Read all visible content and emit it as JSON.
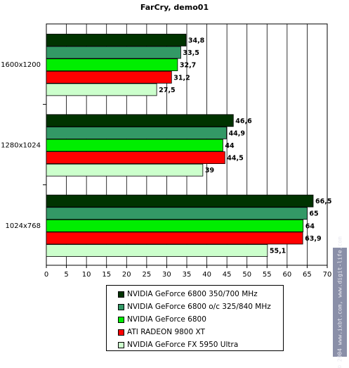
{
  "chart_data": {
    "type": "bar",
    "orientation": "horizontal",
    "title": "FarCry, demo01",
    "categories": [
      "1600x1200",
      "1280x1024",
      "1024x768"
    ],
    "series": [
      {
        "name": "NVIDIA GeForce 6800 350/700 MHz",
        "color": "#003300",
        "values": [
          34.8,
          46.6,
          66.5
        ],
        "labels": [
          "34,8",
          "46,6",
          "66,5"
        ]
      },
      {
        "name": "NVIDIA GeForce 6800 o/c 325/840 MHz",
        "color": "#339966",
        "values": [
          33.5,
          44.9,
          65
        ],
        "labels": [
          "33,5",
          "44,9",
          "65"
        ]
      },
      {
        "name": "NVIDIA GeForce 6800",
        "color": "#00ee00",
        "values": [
          32.7,
          44,
          64
        ],
        "labels": [
          "32,7",
          "44",
          "64"
        ]
      },
      {
        "name": "ATI RADEON 9800 XT",
        "color": "#ff0000",
        "values": [
          31.2,
          44.5,
          63.9
        ],
        "labels": [
          "31,2",
          "44,5",
          "63,9"
        ]
      },
      {
        "name": "NVIDIA GeForce FX 5950 Ultra",
        "color": "#ccffcc",
        "values": [
          27.5,
          39,
          55.1
        ],
        "labels": [
          "27,5",
          "39",
          "55,1"
        ]
      }
    ],
    "xlim": [
      0,
      70
    ],
    "xticks": [
      0,
      5,
      10,
      15,
      20,
      25,
      30,
      35,
      40,
      45,
      50,
      55,
      60,
      65,
      70
    ],
    "grid": true,
    "legend_position": "bottom"
  },
  "watermark": "© 2004 www.ixbt.com, www.digit-life.com"
}
